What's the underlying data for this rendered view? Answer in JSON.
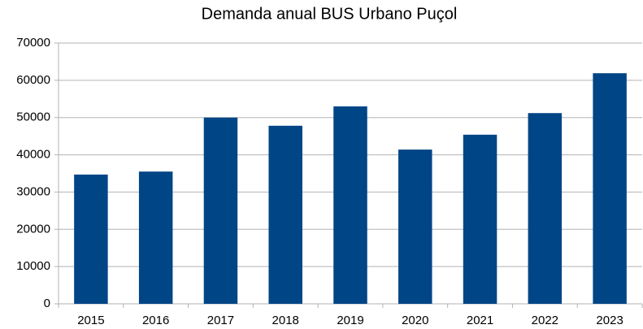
{
  "chart_data": {
    "type": "bar",
    "title": "Demanda anual BUS Urbano Puçol",
    "categories": [
      "2015",
      "2016",
      "2017",
      "2018",
      "2019",
      "2020",
      "2021",
      "2022",
      "2023"
    ],
    "values": [
      34700,
      35500,
      50000,
      47800,
      53000,
      41400,
      45400,
      51200,
      61900
    ],
    "color": "#004586",
    "ylim": [
      0,
      70000
    ],
    "yticks": [
      0,
      10000,
      20000,
      30000,
      40000,
      50000,
      60000,
      70000
    ],
    "grid": true
  }
}
